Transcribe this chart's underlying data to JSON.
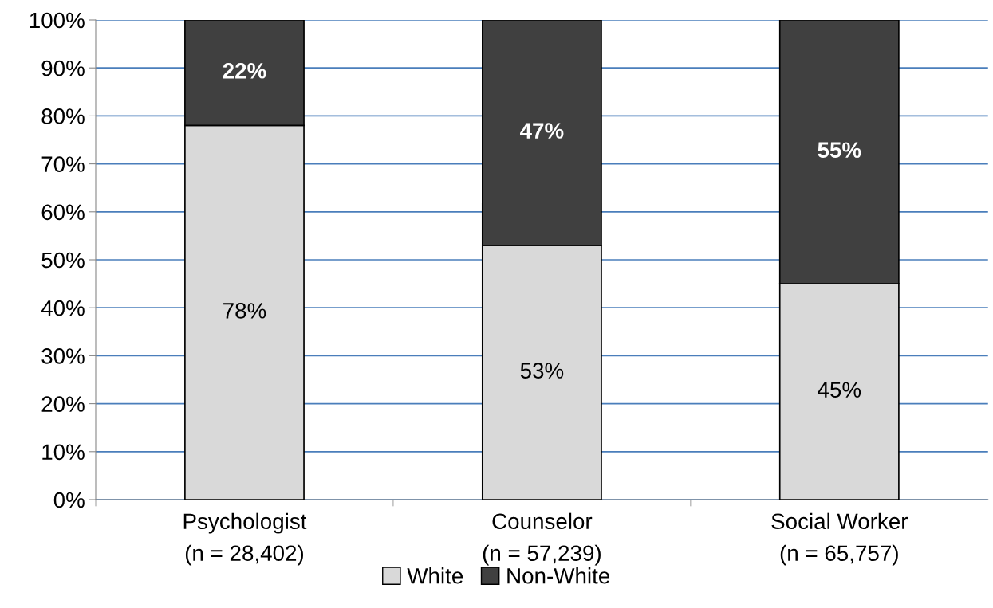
{
  "chart_data": {
    "type": "bar",
    "stacked": true,
    "categories": [
      "Psychologist\n(n = 28,402)",
      "Counselor\n(n = 57,239)",
      "Social Worker\n(n = 65,757)"
    ],
    "series": [
      {
        "name": "White",
        "color": "#d9d9d9",
        "values": [
          78,
          53,
          45
        ],
        "value_labels": [
          "78%",
          "53%",
          "45%"
        ]
      },
      {
        "name": "Non-White",
        "color": "#404040",
        "values": [
          22,
          47,
          55
        ],
        "value_labels": [
          "22%",
          "47%",
          "55%"
        ]
      }
    ],
    "ylim": [
      0,
      100
    ],
    "yticks": [
      {
        "value": 0,
        "label": "0%"
      },
      {
        "value": 10,
        "label": "10%"
      },
      {
        "value": 20,
        "label": "20%"
      },
      {
        "value": 30,
        "label": "30%"
      },
      {
        "value": 40,
        "label": "40%"
      },
      {
        "value": 50,
        "label": "50%"
      },
      {
        "value": 60,
        "label": "60%"
      },
      {
        "value": 70,
        "label": "70%"
      },
      {
        "value": 80,
        "label": "80%"
      },
      {
        "value": 90,
        "label": "90%"
      },
      {
        "value": 100,
        "label": "100%"
      }
    ],
    "grid": "y",
    "legend": "bottom"
  }
}
